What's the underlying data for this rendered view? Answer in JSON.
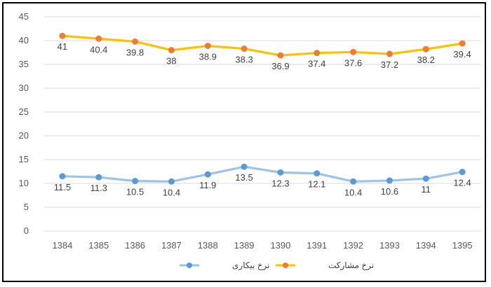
{
  "chart_data": {
    "type": "line",
    "title": "",
    "xlabel": "",
    "ylabel": "",
    "categories": [
      "1384",
      "1385",
      "1386",
      "1387",
      "1388",
      "1389",
      "1390",
      "1391",
      "1392",
      "1393",
      "1394",
      "1395"
    ],
    "ylim": [
      0,
      45
    ],
    "y_ticks": [
      "0",
      "5",
      "10",
      "15",
      "20",
      "25",
      "30",
      "35",
      "40",
      "45"
    ],
    "grid": "horizontal",
    "legend_position": "bottom",
    "series": [
      {
        "name": "نرخ مشارکت",
        "color": "#FFC000",
        "marker_color": "#ED7D31",
        "values": [
          41,
          40.4,
          39.8,
          38,
          38.9,
          38.3,
          36.9,
          37.4,
          37.6,
          37.2,
          38.2,
          39.4
        ],
        "labels": [
          "41",
          "40.4",
          "39.8",
          "38",
          "38.9",
          "38.3",
          "36.9",
          "37.4",
          "37.6",
          "37.2",
          "38.2",
          "39.4"
        ]
      },
      {
        "name": "نرخ بیکاری",
        "color": "#9DC3E6",
        "marker_color": "#5B9BD5",
        "values": [
          11.5,
          11.3,
          10.5,
          10.4,
          11.9,
          13.5,
          12.3,
          12.1,
          10.4,
          10.6,
          11,
          12.4
        ],
        "labels": [
          "11.5",
          "11.3",
          "10.5",
          "10.4",
          "11.9",
          "13.5",
          "12.3",
          "12.1",
          "10.4",
          "10.6",
          "11",
          "12.4"
        ]
      }
    ]
  }
}
